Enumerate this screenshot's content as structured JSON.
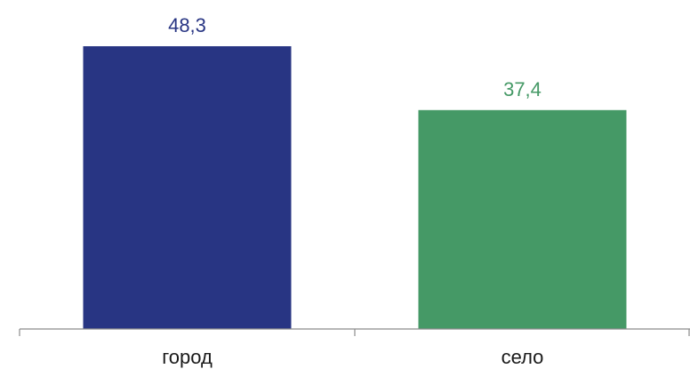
{
  "chart_data": {
    "type": "bar",
    "categories": [
      "город",
      "село"
    ],
    "values": [
      48.3,
      37.4
    ],
    "value_labels": [
      "48,3",
      "37,4"
    ],
    "bar_colors": [
      "#283583",
      "#459966"
    ],
    "ylim": [
      0,
      58
    ],
    "grid": false,
    "legend": "none"
  }
}
